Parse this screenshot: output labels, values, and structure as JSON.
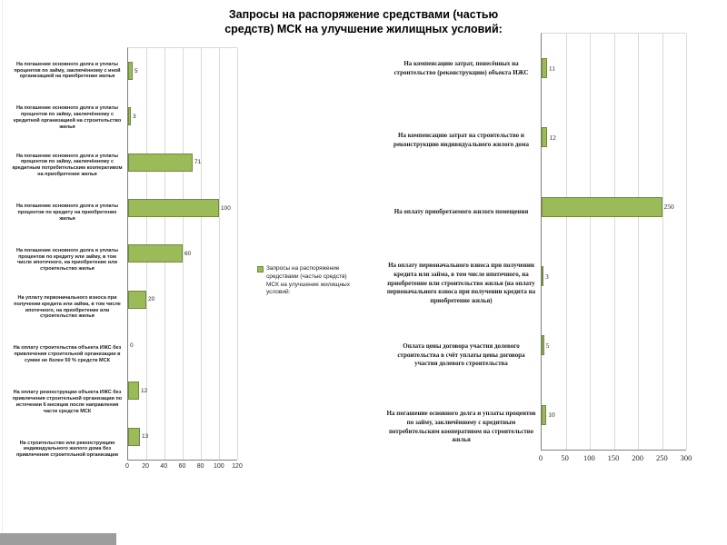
{
  "title": "Запросы на распоряжение средствами (частью средств) МСК на улучшение жилищных условий:",
  "legend": {
    "label": "Запросы на распоряжение средствами (частью средств) МСК на улучшение жилищных условий:"
  },
  "colors": {
    "bar_fill": "#9bbb59",
    "bar_border": "#71893f",
    "gridline": "#d9d9d9",
    "axis": "#808080",
    "footer_bar": "#9d9d9d"
  },
  "chart_data": [
    {
      "type": "bar",
      "orientation": "horizontal",
      "title": "",
      "categories": [
        "На погашение основного долга и уплаты процентов по займу, заключённому с иной организацией на приобретение жилья",
        "На погашение основного долга и уплаты процентов по займу, заключённому с кредитной организацией на строительство жилья",
        "На погашение основного долга и уплаты процентов по займу, заключённому с кредитным потребительским кооперативом на приобретение жилья",
        "На погашение основного долга и уплаты процентов по кредиту на приобретение жилья",
        "На погашение основного долга и уплаты процентов по кредиту или займу, в том числе ипотечного, на приобретение или строительство жилья",
        "На уплату первоначального взноса при получении кредита или займа, в том числе ипотечного, на приобретение или строительство жилья",
        "На оплату строительства объекта ИЖС без привлечения строительной организации в сумме не более 50 % средств МСК",
        "На оплату реконструкции объекта ИЖС без привлечения строительной организации по истечении 6 месяцев после направления части средств МСК",
        "На строительство или реконструкцию индивидуального жилого дома без привлечения строительной организации"
      ],
      "values": [
        5,
        3,
        71,
        100,
        60,
        20,
        0,
        12,
        13
      ],
      "xlim": [
        0,
        120
      ],
      "xticks": [
        0,
        20,
        40,
        60,
        80,
        100,
        120
      ],
      "grid": true,
      "data_labels": true,
      "legend_position": "right"
    },
    {
      "type": "bar",
      "orientation": "horizontal",
      "title": "",
      "categories": [
        "На компенсацию затрат, понесённых на строительство (реконструкцию) объекта ИЖС",
        "На компенсацию затрат на строительство и реконструкцию индивидуального жилого дома",
        "На оплату приобретаемого жилого помещения",
        "На оплату первоначального взноса при получении кредита или займа, в том числе ипотечного, на приобретение или строительство жилья (на оплату первоначального взноса при получении кредита на приобретение жилья)",
        "Оплата цены договора участия долевого строительства в счёт уплаты цены договора участия долевого строительства",
        "На погашение основного долга и уплаты процентов по займу, заключённому с кредитным потребительским кооперативом на строительство жилья"
      ],
      "values": [
        11,
        12,
        250,
        3,
        5,
        10
      ],
      "xlim": [
        0,
        300
      ],
      "xticks": [
        0,
        50,
        100,
        150,
        200,
        250,
        300
      ],
      "grid": true,
      "data_labels": true,
      "legend_position": "none"
    }
  ]
}
